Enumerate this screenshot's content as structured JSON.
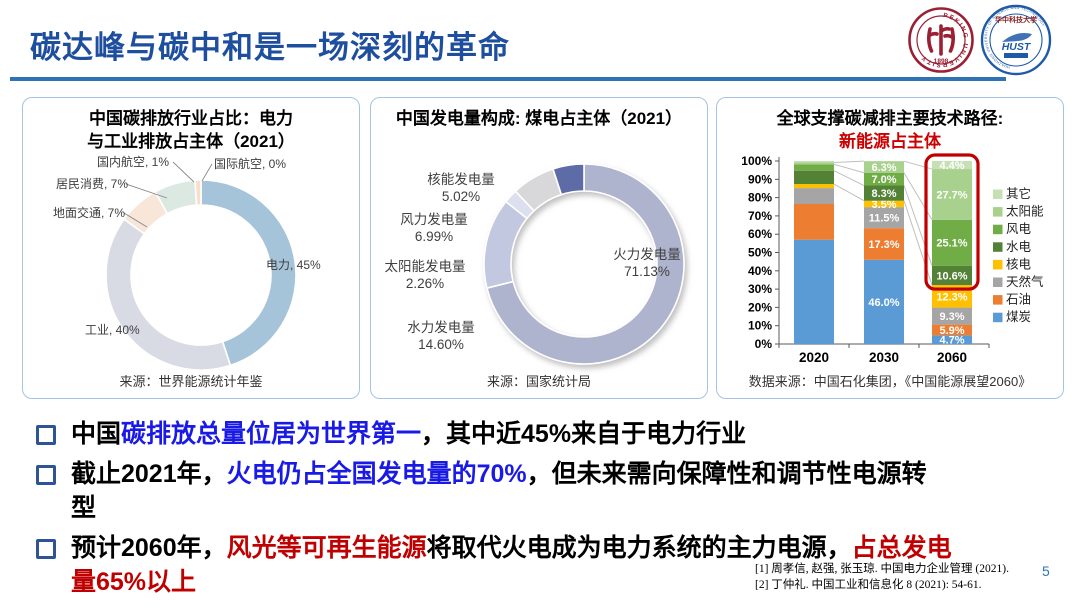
{
  "slide": {
    "title": "碳达峰与碳中和是一场深刻的革命",
    "page_number": "5",
    "references": [
      "[1] 周孝信, 赵强, 张玉琼. 中国电力企业管理 (2021).",
      "[2] 丁仲礼. 中国工业和信息化 8 (2021): 54-61."
    ]
  },
  "logos": {
    "pku": {
      "ring_text": "PEKING UNIVERSITY",
      "year": "1898",
      "icon": "peking-university-seal"
    },
    "hust": {
      "cn_name": "华中科技大学",
      "abbr": "HUST",
      "ring_text": "HUAZHONG UNIVERSITY OF SCIENCE AND TECHNOLOGY",
      "icon": "hust-seal"
    }
  },
  "colors": {
    "title_blue": "#1E4E9E",
    "accent_rule": "#2E74B5",
    "emphasis_blue": "#1A1AE6",
    "emphasis_red": "#C00000",
    "highlight_box": "#C00000"
  },
  "bullets": [
    {
      "lines": [
        [
          {
            "t": "中国",
            "c": "black"
          },
          {
            "t": "碳排放总量位居为世界第一",
            "c": "blue"
          },
          {
            "t": "，其中近45%来自于电力行业",
            "c": "black"
          }
        ]
      ]
    },
    {
      "lines": [
        [
          {
            "t": "截止2021年，",
            "c": "black"
          },
          {
            "t": "火电仍占全国发电量的70%",
            "c": "blue"
          },
          {
            "t": "，但未来需向保障性和调节性电源转",
            "c": "black"
          }
        ],
        [
          {
            "t": "型",
            "c": "black"
          }
        ]
      ]
    },
    {
      "lines": [
        [
          {
            "t": "预计2060年，",
            "c": "black"
          },
          {
            "t": "风光等可再生能源",
            "c": "red"
          },
          {
            "t": "将取代火电成为电力系统的主力电源，",
            "c": "black"
          },
          {
            "t": "占总发电",
            "c": "red"
          }
        ],
        [
          {
            "t": "量65%以上",
            "c": "red"
          }
        ]
      ]
    }
  ],
  "chart_data": [
    {
      "type": "pie",
      "subtype": "donut",
      "title_line1": "中国碳排放行业占比：电力",
      "title_line2": "与工业排放占主体（2021）",
      "source": "来源：世界能源统计年鉴",
      "segments": [
        {
          "label": "电力",
          "value": 45,
          "value_label": "45%",
          "color": "#A5C3D9"
        },
        {
          "label": "工业",
          "value": 40,
          "value_label": "40%",
          "color": "#D8DBE3"
        },
        {
          "label": "地面交通",
          "value": 7,
          "value_label": "7%",
          "color": "#F8E6D8"
        },
        {
          "label": "居民消费",
          "value": 7,
          "value_label": "7%",
          "color": "#DCE9E2"
        },
        {
          "label": "国内航空",
          "value": 1,
          "value_label": "1%",
          "color": "#F9DFC9"
        },
        {
          "label": "国际航空",
          "value": 0,
          "value_label": "0%",
          "color": "#DDE5EB"
        }
      ]
    },
    {
      "type": "pie",
      "subtype": "donut",
      "title_line1": "中国发电量构成: 煤电占主体（2021）",
      "title_line2": "",
      "source": "来源：国家统计局",
      "segments": [
        {
          "label": "火力发电量",
          "value": 71.13,
          "value_label": "71.13%",
          "color": "#AEB3CE"
        },
        {
          "label": "水力发电量",
          "value": 14.6,
          "value_label": "14.60%",
          "color": "#C2C8DF"
        },
        {
          "label": "太阳能发电量",
          "value": 2.26,
          "value_label": "2.26%",
          "color": "#DCDFEE"
        },
        {
          "label": "风力发电量",
          "value": 6.99,
          "value_label": "6.99%",
          "color": "#D8D8DA"
        },
        {
          "label": "核能发电量",
          "value": 5.02,
          "value_label": "5.02%",
          "color": "#5D6CA6"
        }
      ]
    },
    {
      "type": "bar",
      "subtype": "stacked-100",
      "title_line1": "全球支撑碳减排主要技术路径:",
      "subtitle": "新能源占主体",
      "source": "数据来源：中国石化集团，《中国能源展望2060》",
      "categories": [
        "2020",
        "2030",
        "2060"
      ],
      "series": [
        {
          "name": "煤炭",
          "color": "#5B9BD5",
          "values": [
            57.0,
            46.0,
            4.7
          ],
          "labels": [
            null,
            "46.0%",
            "4.7%"
          ]
        },
        {
          "name": "石油",
          "color": "#ED7D31",
          "values": [
            19.5,
            17.3,
            5.9
          ],
          "labels": [
            null,
            "17.3%",
            "5.9%"
          ]
        },
        {
          "name": "天然气",
          "color": "#A5A5A5",
          "values": [
            8.7,
            11.5,
            9.3
          ],
          "labels": [
            null,
            "11.5%",
            "9.3%"
          ]
        },
        {
          "name": "核电",
          "color": "#FFC000",
          "values": [
            2.2,
            3.5,
            12.3
          ],
          "labels": [
            null,
            "3.5%",
            "12.3%"
          ]
        },
        {
          "name": "水电",
          "color": "#538135",
          "values": [
            7.3,
            8.3,
            10.6
          ],
          "labels": [
            null,
            "8.3%",
            "10.6%"
          ]
        },
        {
          "name": "风电",
          "color": "#70AD47",
          "values": [
            3.5,
            7.0,
            25.1
          ],
          "labels": [
            null,
            "7.0%",
            "25.1%"
          ]
        },
        {
          "name": "太阳能",
          "color": "#A9D18E",
          "values": [
            1.0,
            6.3,
            27.7
          ],
          "labels": [
            null,
            "6.3%",
            "27.7%"
          ]
        },
        {
          "name": "其它",
          "color": "#C6E0B4",
          "values": [
            0.8,
            0.1,
            4.4
          ],
          "labels": [
            null,
            null,
            "4.4%"
          ]
        }
      ],
      "ylim": [
        0,
        100
      ],
      "y_ticks": [
        "0%",
        "10%",
        "20%",
        "30%",
        "40%",
        "50%",
        "60%",
        "70%",
        "80%",
        "90%",
        "100%"
      ],
      "legend_position": "right",
      "grid": false,
      "highlight": {
        "category": "2060",
        "from_series": "水电",
        "color": "#C00000"
      }
    }
  ]
}
